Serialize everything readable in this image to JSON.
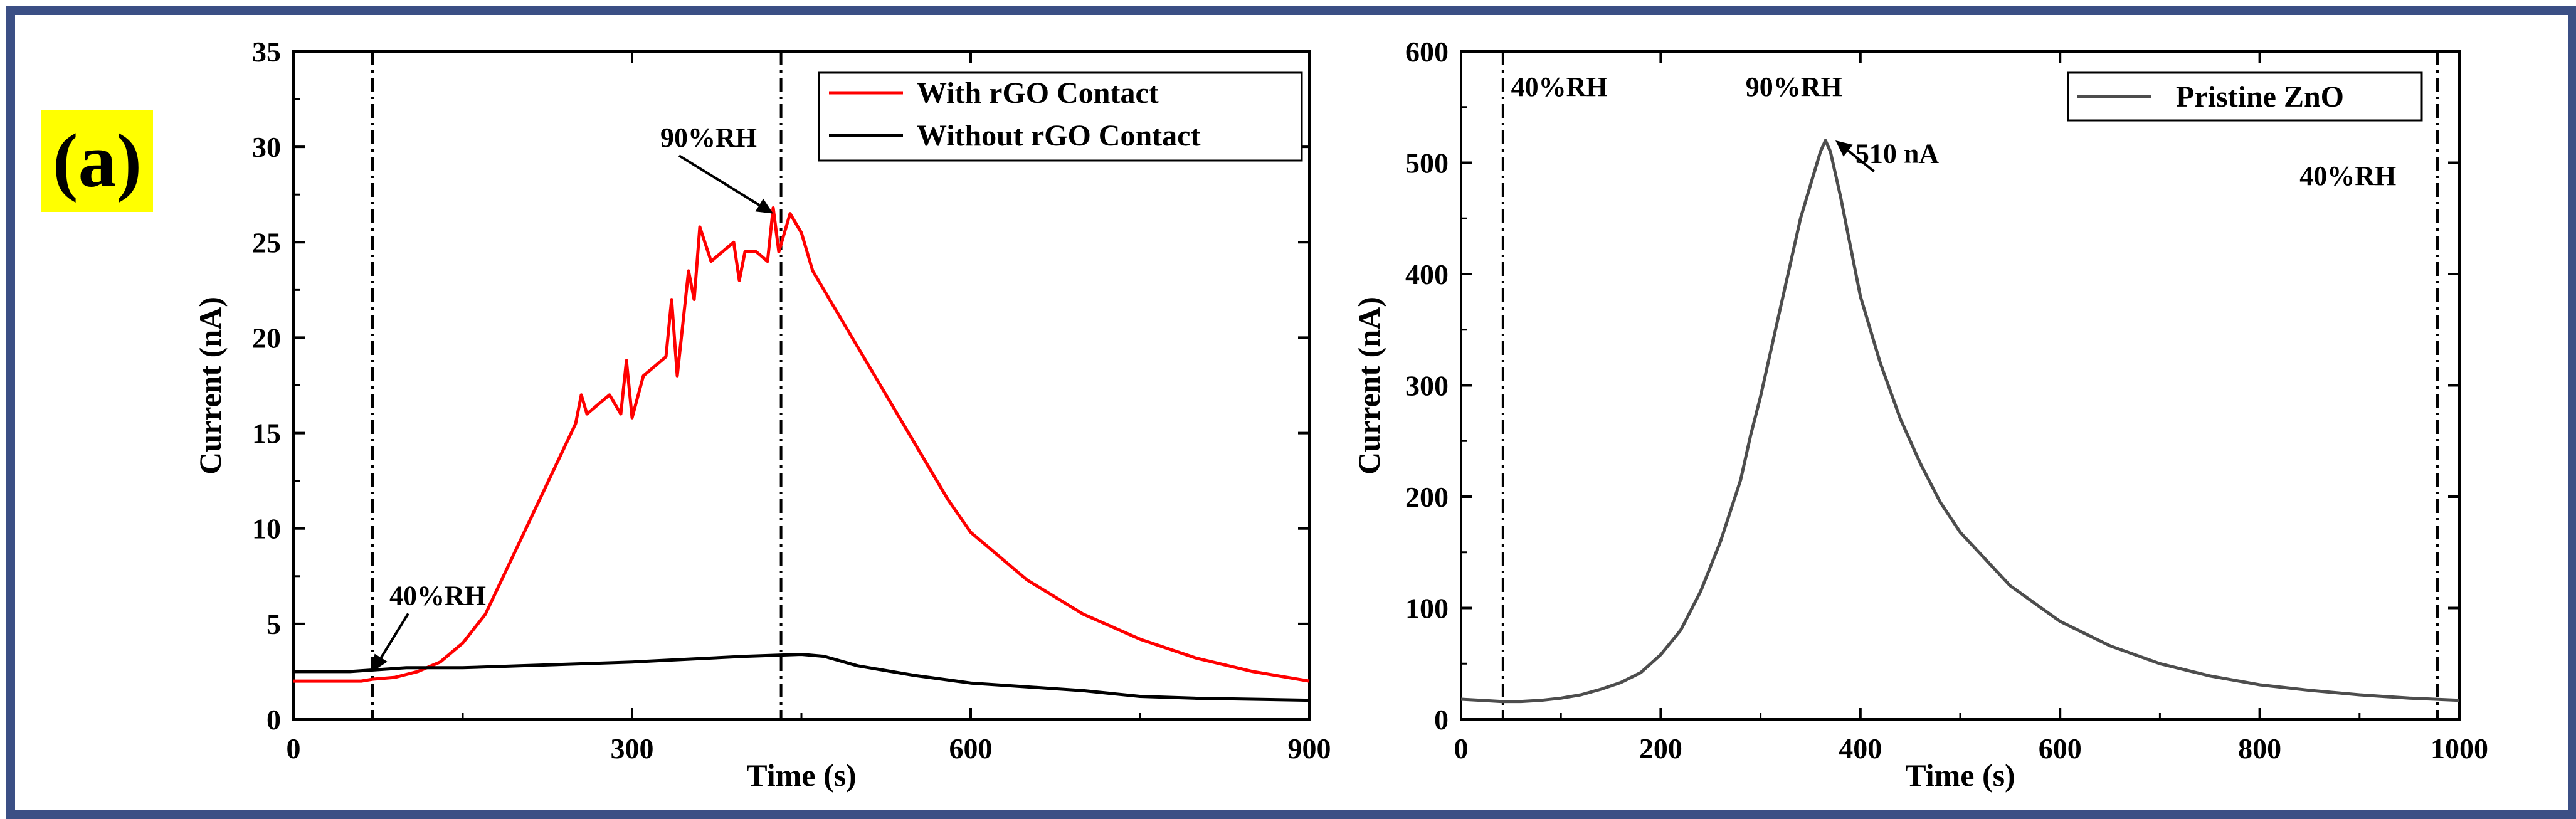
{
  "panel_label": "(a)",
  "chart_data": [
    {
      "type": "line",
      "xlabel": "Time (s)",
      "ylabel": "Current (nA)",
      "xlim": [
        0,
        900
      ],
      "ylim": [
        0,
        35
      ],
      "xticks": [
        0,
        300,
        600,
        900
      ],
      "yticks": [
        0,
        5,
        10,
        15,
        20,
        25,
        30,
        35
      ],
      "grid": false,
      "legend_position": "top-right",
      "vlines": [
        {
          "x": 70,
          "style": "dash-dot"
        },
        {
          "x": 432,
          "style": "dash-dot"
        }
      ],
      "annotations": [
        {
          "text": "40%RH",
          "x": 85,
          "y": 6.0,
          "arrow_to": [
            70,
            2.5
          ]
        },
        {
          "text": "90%RH",
          "x": 325,
          "y": 30.0,
          "arrow_to": [
            425,
            26.5
          ]
        }
      ],
      "series": [
        {
          "name": "With rGO Contact",
          "color": "#ff0000",
          "x": [
            0,
            30,
            60,
            70,
            90,
            110,
            130,
            150,
            170,
            190,
            210,
            230,
            250,
            255,
            260,
            270,
            280,
            290,
            295,
            300,
            310,
            320,
            330,
            335,
            340,
            350,
            355,
            360,
            370,
            380,
            390,
            395,
            400,
            410,
            420,
            425,
            430,
            440,
            450,
            460,
            480,
            500,
            520,
            540,
            560,
            580,
            600,
            650,
            700,
            750,
            800,
            850,
            900
          ],
          "y": [
            2.0,
            2.0,
            2.0,
            2.1,
            2.2,
            2.5,
            3.0,
            4.0,
            5.5,
            8.0,
            10.5,
            13.0,
            15.5,
            17.0,
            16.0,
            16.5,
            17.0,
            16.0,
            18.8,
            15.8,
            18.0,
            18.5,
            19.0,
            22.0,
            18.0,
            23.5,
            22.0,
            25.8,
            24.0,
            24.5,
            25.0,
            23.0,
            24.5,
            24.5,
            24.0,
            26.8,
            24.5,
            26.5,
            25.5,
            23.5,
            21.5,
            19.5,
            17.5,
            15.5,
            13.5,
            11.5,
            9.8,
            7.3,
            5.5,
            4.2,
            3.2,
            2.5,
            2.0
          ]
        },
        {
          "name": "Without rGO Contact",
          "color": "#000000",
          "x": [
            0,
            50,
            100,
            150,
            200,
            300,
            400,
            450,
            470,
            500,
            550,
            600,
            700,
            750,
            800,
            900
          ],
          "y": [
            2.5,
            2.5,
            2.7,
            2.7,
            2.8,
            3.0,
            3.3,
            3.4,
            3.3,
            2.8,
            2.3,
            1.9,
            1.5,
            1.2,
            1.1,
            1.0
          ]
        }
      ]
    },
    {
      "type": "line",
      "xlabel": "Time (s)",
      "ylabel": "Current (nA)",
      "xlim": [
        0,
        1000
      ],
      "ylim": [
        0,
        600
      ],
      "xticks": [
        0,
        200,
        400,
        600,
        800,
        1000
      ],
      "yticks": [
        0,
        100,
        200,
        300,
        400,
        500,
        600
      ],
      "grid": false,
      "legend_position": "top-right",
      "vlines": [
        {
          "x": 42,
          "style": "dash-dot"
        },
        {
          "x": 978,
          "style": "dash-dot"
        }
      ],
      "annotations": [
        {
          "text": "40%RH",
          "x": 50,
          "y": 560
        },
        {
          "text": "90%RH",
          "x": 285,
          "y": 560
        },
        {
          "text": "510 nA",
          "x": 395,
          "y": 500,
          "arrow_to": [
            375,
            520
          ]
        },
        {
          "text": "40%RH",
          "x": 840,
          "y": 480
        }
      ],
      "series": [
        {
          "name": "Pristine ZnO",
          "color": "#4d4d4d",
          "x": [
            0,
            20,
            40,
            60,
            80,
            100,
            120,
            140,
            160,
            180,
            200,
            220,
            240,
            260,
            280,
            290,
            300,
            310,
            320,
            330,
            340,
            350,
            360,
            365,
            370,
            380,
            400,
            420,
            440,
            460,
            480,
            500,
            550,
            600,
            650,
            700,
            750,
            800,
            850,
            900,
            950,
            1000
          ],
          "y": [
            18,
            17,
            16,
            16,
            17,
            19,
            22,
            27,
            33,
            42,
            58,
            80,
            115,
            160,
            215,
            255,
            290,
            330,
            370,
            410,
            450,
            480,
            510,
            520,
            510,
            470,
            380,
            320,
            270,
            230,
            195,
            168,
            120,
            88,
            66,
            50,
            39,
            31,
            26,
            22,
            19,
            17
          ]
        }
      ]
    }
  ]
}
